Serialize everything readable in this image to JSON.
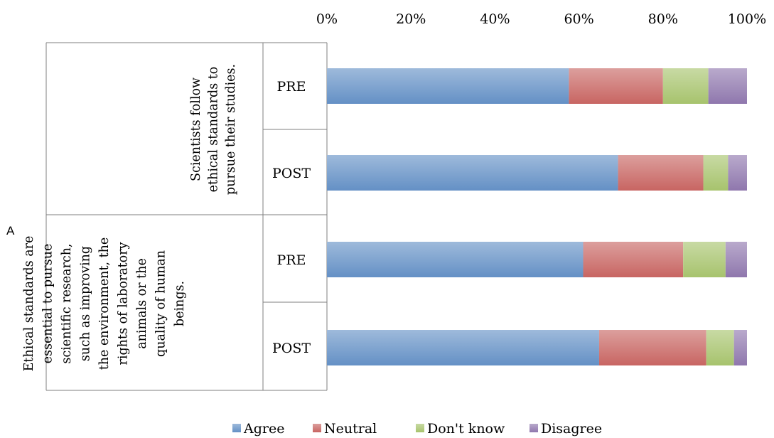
{
  "chart_data": {
    "type": "bar",
    "orientation": "horizontal",
    "stacked": "percent",
    "panel_label": "A",
    "x_ticks": [
      "0%",
      "20%",
      "40%",
      "60%",
      "80%",
      "100%"
    ],
    "xlim": [
      0,
      100
    ],
    "legend_position": "bottom",
    "groups": [
      {
        "label": "Scientists follow ethical standards to pursue their studies.",
        "label_lines": [
          "Scientists follow",
          "ethical standards to",
          "pursue their studies."
        ],
        "categories": [
          "PRE",
          "POST"
        ]
      },
      {
        "label": "Ethical standards are essential to pursue scientific research, such as improving the environment, the rights of laboratory animals or the quality of human beings.",
        "label_lines": [
          "Ethical standards are",
          "essential to pursue",
          "scientific research,",
          "such as improving",
          "the environment, the",
          "rights of laboratory",
          "animals or the",
          "quality of human",
          "beings."
        ],
        "categories": [
          "PRE",
          "POST"
        ]
      }
    ],
    "categories": [
      "PRE",
      "POST",
      "PRE",
      "POST"
    ],
    "series": [
      {
        "name": "Agree",
        "color": "#4f81bd",
        "values": [
          57.6,
          69.3,
          61.0,
          64.8
        ]
      },
      {
        "name": "Neutral",
        "color": "#c0504d",
        "values": [
          22.4,
          20.3,
          23.8,
          25.5
        ]
      },
      {
        "name": "Don't know",
        "color": "#9bbb59",
        "values": [
          10.8,
          5.9,
          10.1,
          6.6
        ]
      },
      {
        "name": "Disagree",
        "color": "#8064a2",
        "values": [
          9.2,
          4.5,
          5.1,
          3.1
        ]
      }
    ]
  }
}
